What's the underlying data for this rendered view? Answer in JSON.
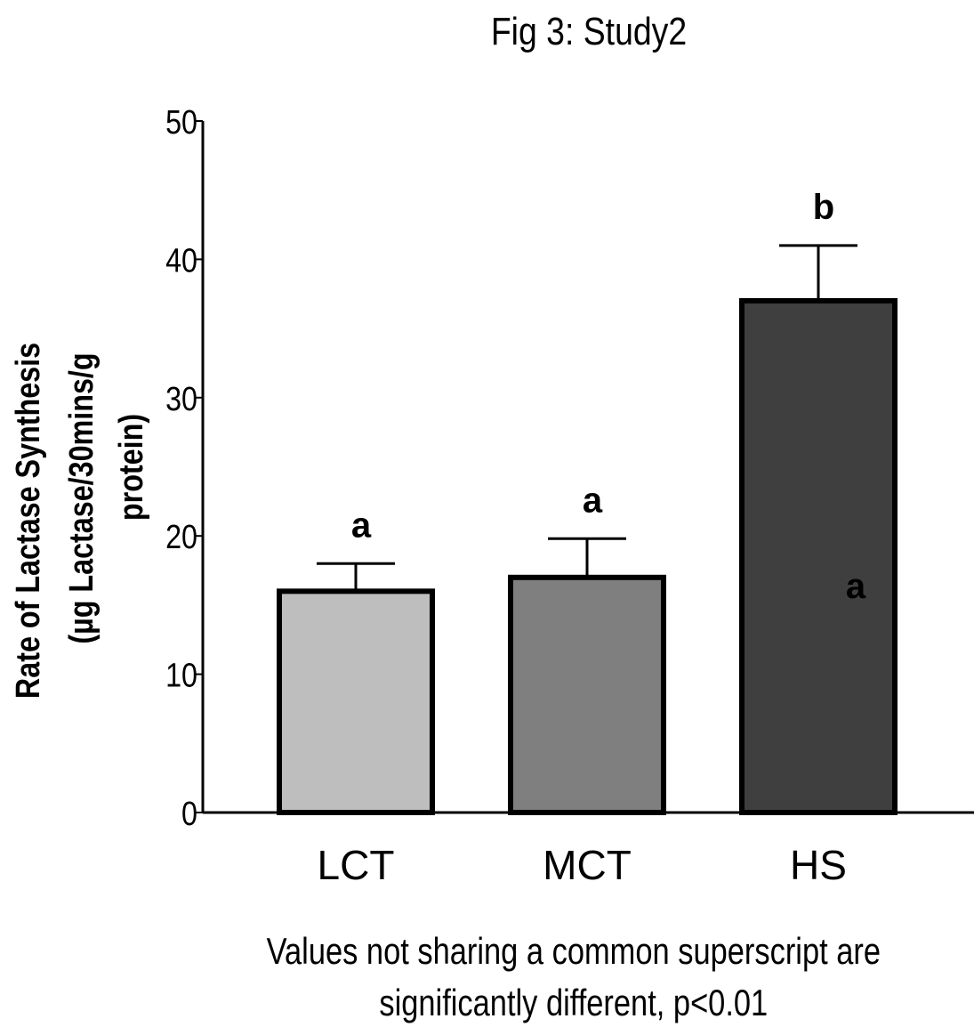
{
  "chart_data": {
    "type": "bar",
    "title": "Fig 3: Study2",
    "ylabel_lines": [
      "Rate of Lactase Synthesis",
      "(µg Lactase/30mins/g",
      "protein)"
    ],
    "xlabel": "",
    "categories": [
      "LCT",
      "MCT",
      "HS"
    ],
    "values": [
      16,
      17,
      37
    ],
    "errors": [
      2,
      2.8,
      4
    ],
    "significance": [
      "a",
      "a",
      "b"
    ],
    "ylim": [
      0,
      50
    ],
    "yticks": [
      0,
      10,
      20,
      30,
      40,
      50
    ],
    "bar_colors": [
      "#bebebe",
      "#7f7f7f",
      "#3f3f3f"
    ],
    "outline_color": "#000000",
    "grid": false,
    "legend": "none",
    "stray_label": "a"
  },
  "footnote": {
    "line1": "Values not sharing a common superscript are",
    "line2": "significantly different, p<0.01"
  }
}
